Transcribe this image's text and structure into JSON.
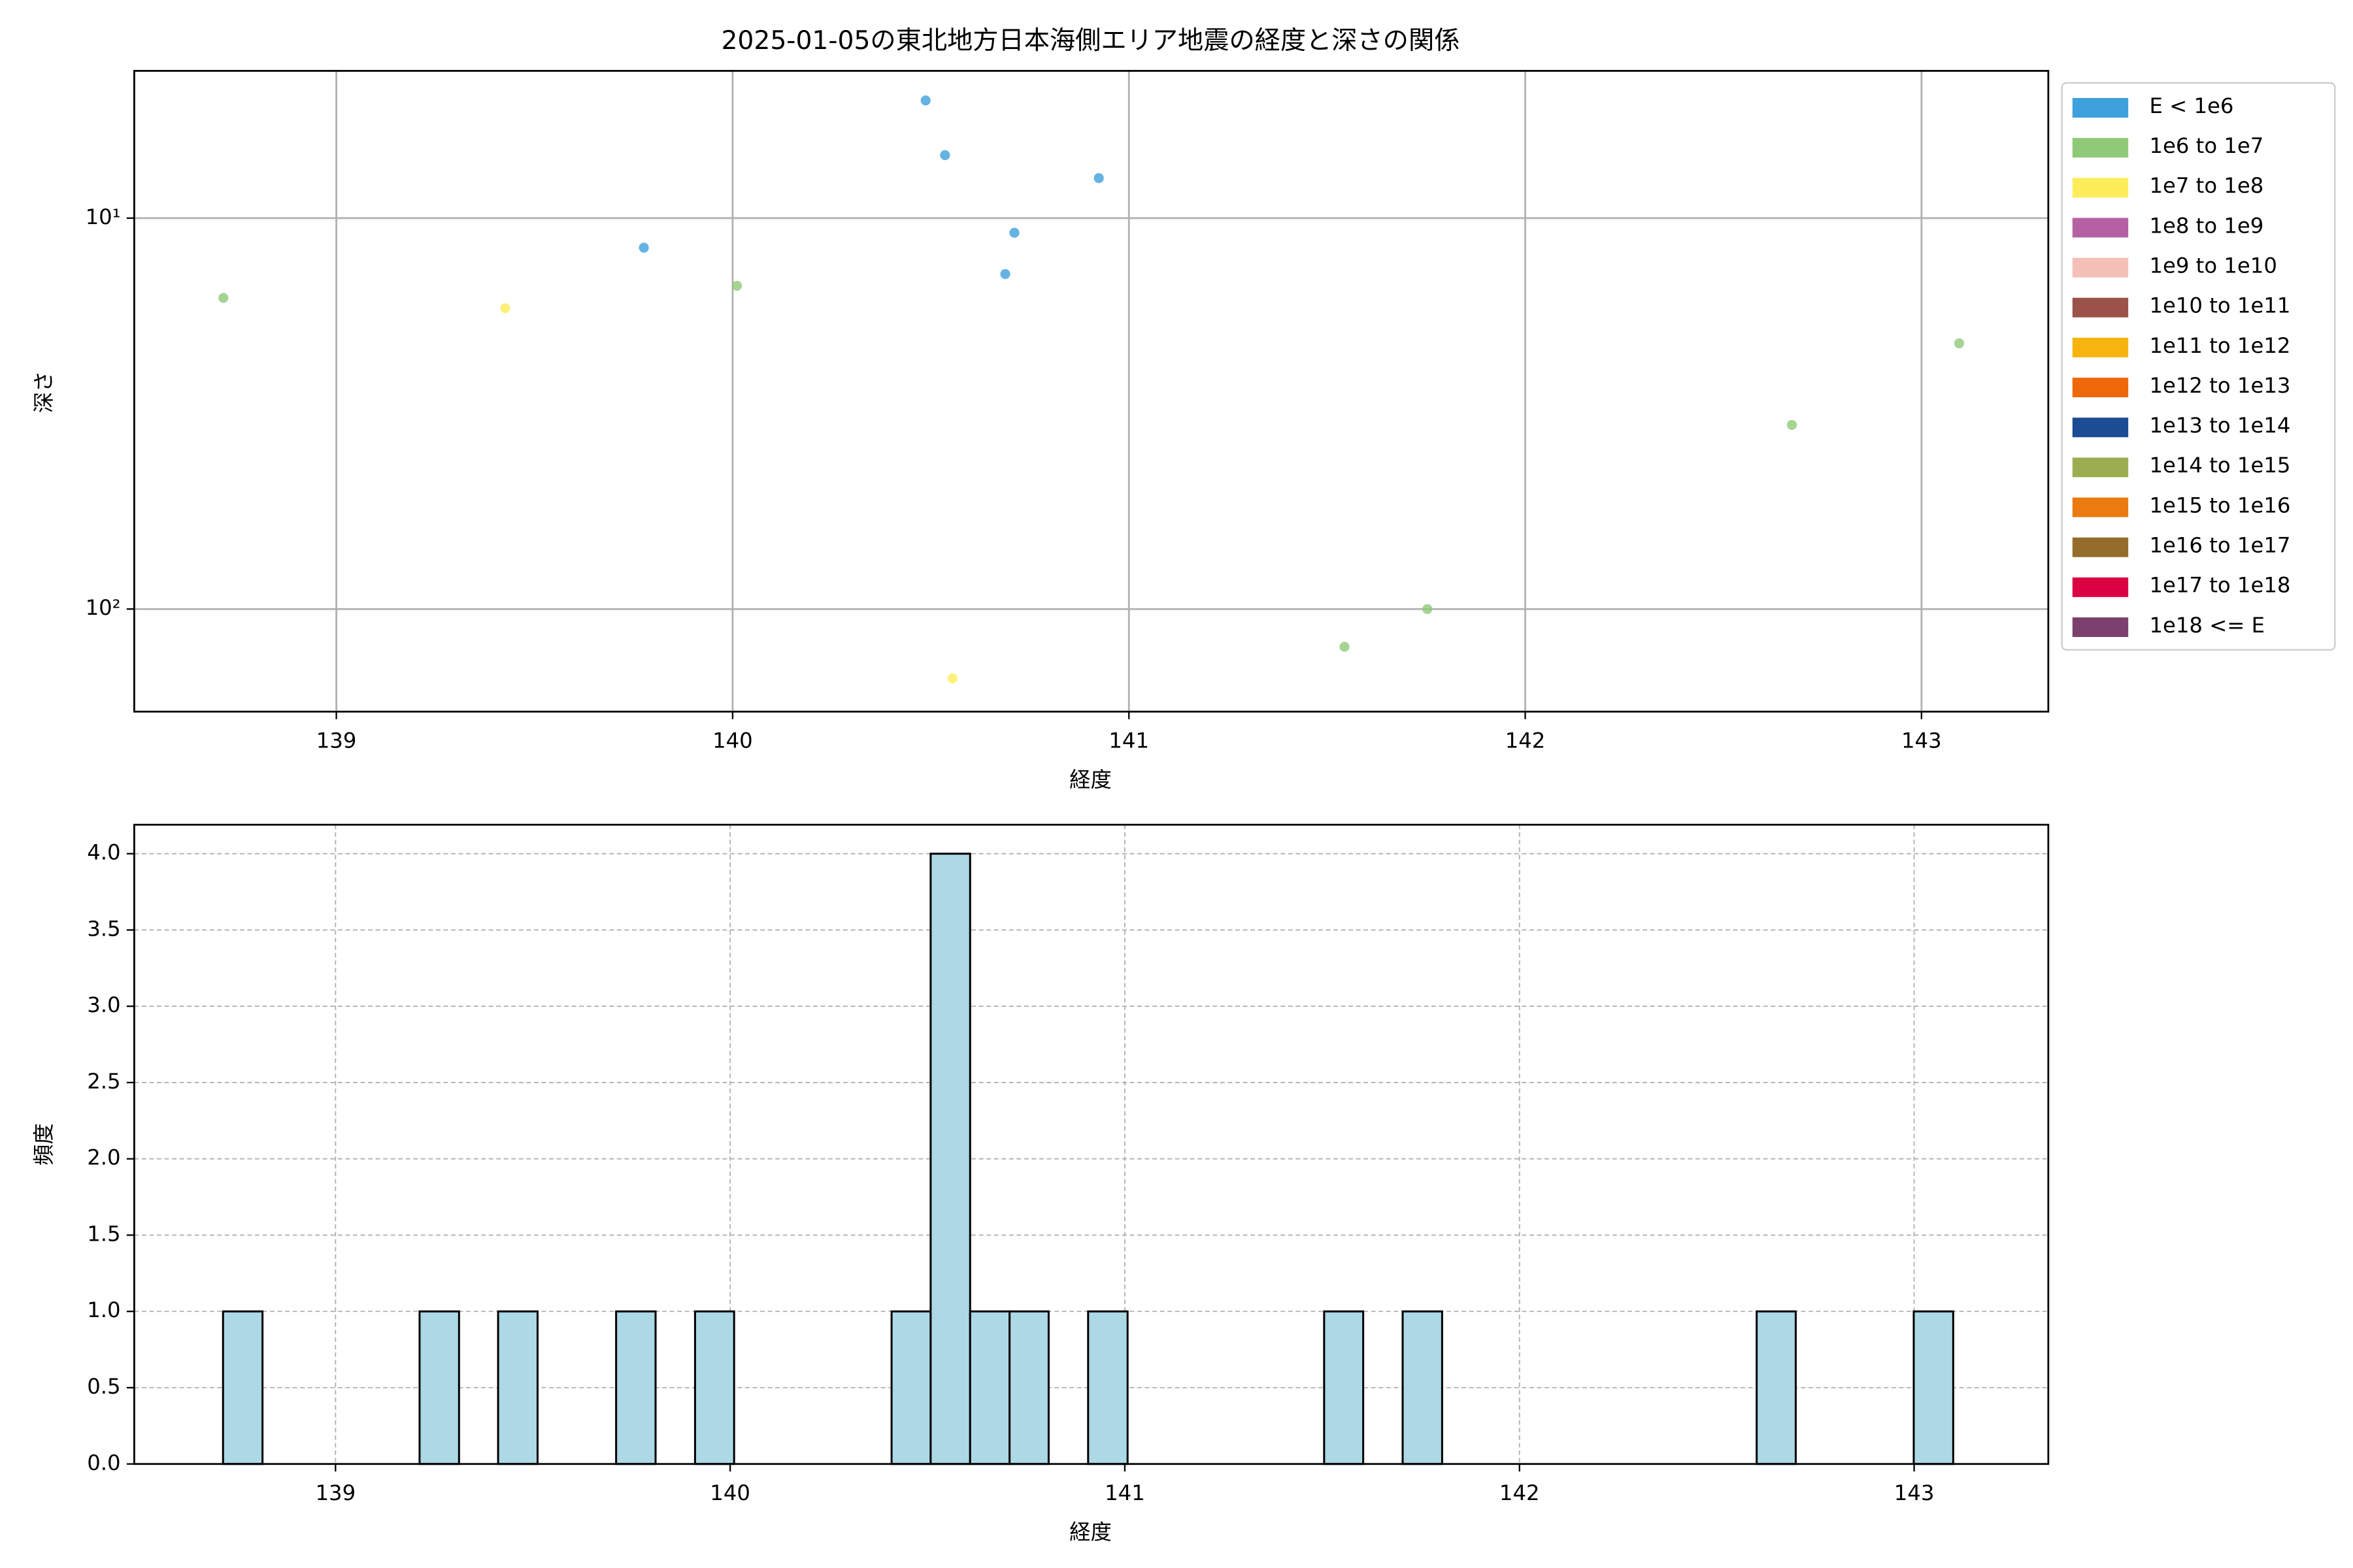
{
  "chart_data": [
    {
      "type": "scatter",
      "title": "2025-01-05の東北地方日本海側エリア地震の経度と深さの関係",
      "x_label": "経度",
      "y_label": "深さ",
      "xlim": [
        138.49,
        143.32
      ],
      "xticks": [
        139,
        140,
        141,
        142,
        143
      ],
      "ylim": [
        4.2,
        183
      ],
      "yticks": [
        {
          "value": 10,
          "label": "10¹"
        },
        {
          "value": 100,
          "label": "10²"
        }
      ],
      "yscale": "log",
      "y_inverted": true,
      "grid": true,
      "grid_style": "solid",
      "legend": "outside right",
      "series": [
        {
          "name": "E < 1e6",
          "color": "#3ea0dc",
          "x": [
            139.776,
            140.487,
            140.536,
            140.688,
            140.711,
            140.924
          ],
          "values": [
            11.9,
            5.0,
            6.9,
            13.9,
            10.9,
            7.9
          ]
        },
        {
          "name": "1e6 to 1e7",
          "color": "#90c978",
          "x": [
            138.715,
            140.011,
            141.544,
            141.753,
            142.673,
            143.095
          ],
          "values": [
            16.0,
            14.9,
            124.9,
            100,
            33.8,
            20.9
          ]
        },
        {
          "name": "1e7 to 1e8",
          "color": "#fded5a",
          "x": [
            139.426,
            140.555
          ],
          "values": [
            17.0,
            150.5
          ]
        },
        {
          "name": "1e8 to 1e9",
          "color": "#b660a4",
          "x": [],
          "values": []
        },
        {
          "name": "1e9 to 1e10",
          "color": "#f4c0b8",
          "x": [],
          "values": []
        },
        {
          "name": "1e10 to 1e11",
          "color": "#9a5249",
          "x": [],
          "values": []
        },
        {
          "name": "1e11 to 1e12",
          "color": "#f7b30e",
          "x": [],
          "values": []
        },
        {
          "name": "1e12 to 1e13",
          "color": "#ee6709",
          "x": [],
          "values": []
        },
        {
          "name": "1e13 to 1e14",
          "color": "#1b4c94",
          "x": [],
          "values": []
        },
        {
          "name": "1e14 to 1e15",
          "color": "#9aae51",
          "x": [],
          "values": []
        },
        {
          "name": "1e15 to 1e16",
          "color": "#eb7a10",
          "x": [],
          "values": []
        },
        {
          "name": "1e16 to 1e17",
          "color": "#946d2c",
          "x": [],
          "values": []
        },
        {
          "name": "1e17 to 1e18",
          "color": "#dc0343",
          "x": [],
          "values": []
        },
        {
          "name": "1e18 <= E",
          "color": "#7c406f",
          "x": [],
          "values": []
        }
      ]
    },
    {
      "type": "histogram",
      "x_label": "経度",
      "y_label": "頻度",
      "color": "#add8e6",
      "edgecolor": "#000000",
      "xlim": [
        138.49,
        143.34
      ],
      "xticks": [
        139,
        140,
        141,
        142,
        143
      ],
      "ylim": [
        0,
        4.19
      ],
      "yticks": [
        {
          "value": 0,
          "label": "0.0"
        },
        {
          "value": 0.5,
          "label": "0.5"
        },
        {
          "value": 1,
          "label": "1.0"
        },
        {
          "value": 1.5,
          "label": "1.5"
        },
        {
          "value": 2,
          "label": "2.0"
        },
        {
          "value": 2.5,
          "label": "2.5"
        },
        {
          "value": 3,
          "label": "3.0"
        },
        {
          "value": 3.5,
          "label": "3.5"
        },
        {
          "value": 4,
          "label": "4.0"
        }
      ],
      "grid": true,
      "grid_style": "dashed",
      "bins": [
        138.715,
        138.815,
        138.914,
        139.014,
        139.114,
        139.213,
        139.313,
        139.412,
        139.512,
        139.612,
        139.711,
        139.811,
        139.911,
        140.01,
        140.11,
        140.21,
        140.309,
        140.409,
        140.508,
        140.608,
        140.708,
        140.807,
        140.907,
        141.007,
        141.106,
        141.206,
        141.305,
        141.405,
        141.505,
        141.604,
        141.704,
        141.804,
        141.903,
        142.003,
        142.102,
        142.202,
        142.302,
        142.401,
        142.501,
        142.601,
        142.7,
        142.8,
        142.9,
        142.999,
        143.099
      ],
      "values": [
        1,
        0,
        0,
        0,
        0,
        1,
        0,
        1,
        0,
        0,
        1,
        0,
        1,
        0,
        0,
        0,
        0,
        1,
        4,
        1,
        1,
        0,
        1,
        0,
        0,
        0,
        0,
        0,
        1,
        0,
        1,
        0,
        0,
        0,
        0,
        0,
        0,
        0,
        0,
        1,
        0,
        0,
        0,
        1
      ]
    }
  ]
}
